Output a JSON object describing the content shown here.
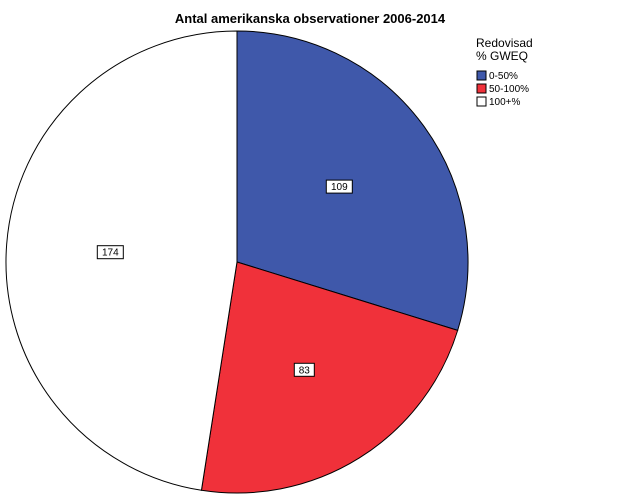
{
  "chart_data": {
    "type": "pie",
    "title": "Antal amerikanska observationer 2006-2014",
    "legend": {
      "title_lines": [
        "Redovisad",
        "% GWEQ"
      ],
      "placement": "top-right"
    },
    "slices": [
      {
        "label": "0-50%",
        "value": 109,
        "color": "#3f58aa"
      },
      {
        "label": "50-100%",
        "value": 83,
        "color": "#f0313a"
      },
      {
        "label": "100+%",
        "value": 174,
        "color": "#ffffff"
      }
    ]
  }
}
